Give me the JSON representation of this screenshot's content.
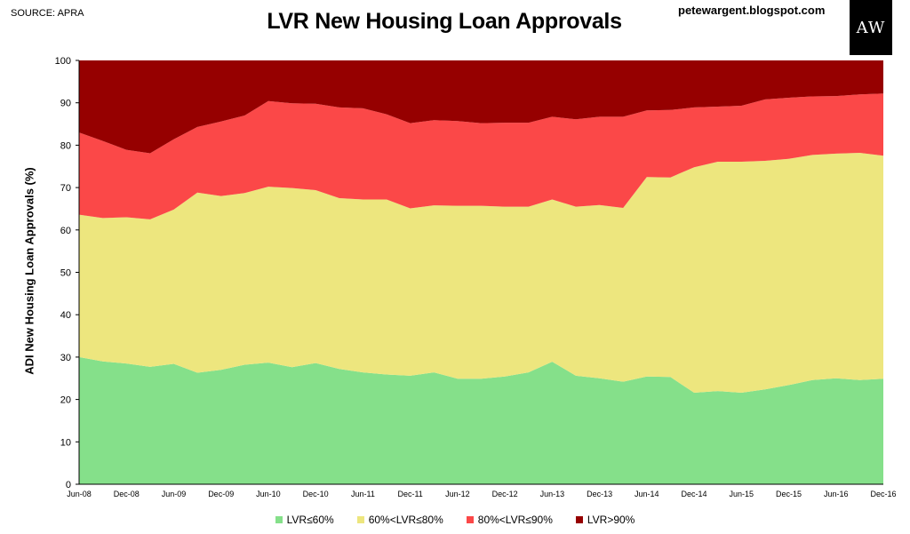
{
  "header": {
    "source": "SOURCE: APRA",
    "title": "LVR New Housing Loan Approvals",
    "blog": "petewargent.blogspot.com",
    "logo_text": "AW"
  },
  "chart_data": {
    "type": "area",
    "stacked": true,
    "title": "LVR New Housing Loan Approvals",
    "xlabel": "",
    "ylabel": "ADI New Housing Loan Approvals (%)",
    "ylim": [
      0,
      100
    ],
    "yticks": [
      0,
      10,
      20,
      30,
      40,
      50,
      60,
      70,
      80,
      90,
      100
    ],
    "x": [
      "Jun-08",
      "Sep-08",
      "Dec-08",
      "Mar-09",
      "Jun-09",
      "Sep-09",
      "Dec-09",
      "Mar-10",
      "Jun-10",
      "Sep-10",
      "Dec-10",
      "Mar-11",
      "Jun-11",
      "Sep-11",
      "Dec-11",
      "Mar-12",
      "Jun-12",
      "Sep-12",
      "Dec-12",
      "Mar-13",
      "Jun-13",
      "Sep-13",
      "Dec-13",
      "Mar-14",
      "Jun-14",
      "Sep-14",
      "Dec-14",
      "Mar-15",
      "Jun-15",
      "Sep-15",
      "Dec-15",
      "Mar-16",
      "Jun-16",
      "Sep-16",
      "Dec-16"
    ],
    "xtick_labels": [
      "Jun-08",
      "Dec-08",
      "Jun-09",
      "Dec-09",
      "Jun-10",
      "Dec-10",
      "Jun-11",
      "Dec-11",
      "Jun-12",
      "Dec-12",
      "Jun-13",
      "Dec-13",
      "Jun-14",
      "Dec-14",
      "Jun-15",
      "Dec-15",
      "Jun-16",
      "Dec-16"
    ],
    "series": [
      {
        "name": "LVR≤60%",
        "color": "#85e08a",
        "values": [
          30.0,
          29.0,
          28.5,
          27.7,
          28.4,
          26.3,
          27.0,
          28.2,
          28.7,
          27.6,
          28.6,
          27.2,
          26.4,
          25.9,
          25.6,
          26.4,
          24.9,
          24.9,
          25.4,
          26.4,
          28.9,
          25.6,
          25.0,
          24.2,
          25.4,
          25.3,
          21.6,
          22.0,
          21.6,
          22.4,
          23.4,
          24.6,
          25.0,
          24.6,
          24.9
        ]
      },
      {
        "name": "60%<LVR≤80%",
        "color": "#ede67e",
        "values": [
          33.6,
          33.8,
          34.5,
          34.8,
          36.4,
          42.5,
          41.0,
          40.5,
          41.5,
          42.3,
          40.8,
          40.3,
          40.8,
          41.3,
          39.5,
          39.4,
          40.8,
          40.8,
          40.1,
          39.1,
          38.3,
          39.9,
          40.9,
          41.0,
          47.1,
          47.1,
          53.2,
          54.1,
          54.5,
          53.9,
          53.4,
          53.1,
          53.0,
          53.6,
          52.6
        ]
      },
      {
        "name": "80%<LVR≤90%",
        "color": "#fb4848",
        "values": [
          19.4,
          18.2,
          15.9,
          15.6,
          16.6,
          15.5,
          17.6,
          18.3,
          20.2,
          20.0,
          20.4,
          21.4,
          21.5,
          20.1,
          20.1,
          20.1,
          20.0,
          19.5,
          19.8,
          19.8,
          19.5,
          20.6,
          20.8,
          21.5,
          15.7,
          15.9,
          14.1,
          13.0,
          13.2,
          14.5,
          14.4,
          13.8,
          13.6,
          13.8,
          14.7
        ]
      },
      {
        "name": "LVR>90%",
        "color": "#960000",
        "values": [
          17.0,
          19.0,
          21.1,
          21.9,
          18.6,
          15.7,
          14.4,
          13.0,
          9.6,
          10.1,
          10.2,
          11.1,
          11.3,
          12.7,
          14.8,
          14.1,
          14.3,
          14.8,
          14.7,
          14.7,
          13.3,
          13.9,
          13.3,
          13.3,
          11.8,
          11.7,
          11.1,
          10.9,
          10.7,
          9.2,
          8.8,
          8.5,
          8.4,
          8.0,
          7.8
        ]
      }
    ],
    "legend_position": "bottom",
    "grid": false
  }
}
